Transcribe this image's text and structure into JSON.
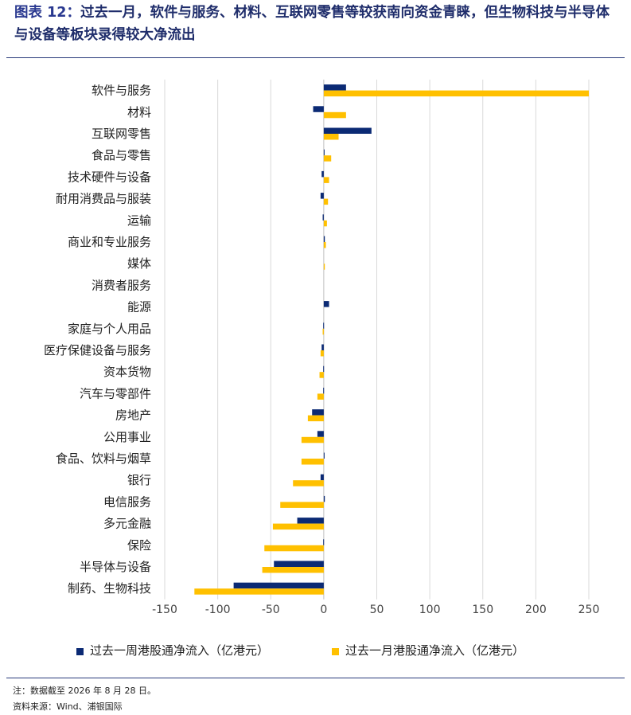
{
  "title": {
    "label": "图表 12：",
    "text": "过去一月，软件与服务、材料、互联网零售等较获南向资金青睐，但生物科技与半导体与设备等板块录得较大净流出"
  },
  "colors": {
    "week": "#0b2a74",
    "month": "#ffc000",
    "grid": "#d9d9d9",
    "rule": "#2a3a7a"
  },
  "chart_data": {
    "type": "bar",
    "orientation": "horizontal",
    "categories": [
      "软件与服务",
      "材料",
      "互联网零售",
      "食品与零售",
      "技术硬件与设备",
      "耐用消费品与服装",
      "运输",
      "商业和专业服务",
      "媒体",
      "消费者服务",
      "能源",
      "家庭与个人用品",
      "医疗保健设备与服务",
      "资本货物",
      "汽车与零部件",
      "房地产",
      "公用事业",
      "食品、饮料与烟草",
      "银行",
      "电信服务",
      "多元金融",
      "保险",
      "半导体与设备",
      "制药、生物科技"
    ],
    "series": [
      {
        "name": "过去一周港股通净流入（亿港元）",
        "values": [
          21,
          -10,
          45,
          0.5,
          -2,
          -3,
          -1,
          1,
          0,
          0,
          5,
          -0.5,
          -2,
          -0.5,
          -0.5,
          -11,
          -6,
          0.5,
          -3,
          1,
          -25,
          -0.5,
          -47,
          -85
        ]
      },
      {
        "name": "过去一月港股通净流入（亿港元）",
        "values": [
          250,
          21,
          14,
          7,
          5,
          4,
          3,
          2,
          1,
          0,
          0,
          -1,
          -3,
          -4,
          -6,
          -15,
          -21,
          -21,
          -29,
          -41,
          -48,
          -56,
          -58,
          -122
        ]
      }
    ],
    "xticks": [
      "-150",
      "-100",
      "-50",
      "0",
      "50",
      "100",
      "150",
      "200",
      "250"
    ],
    "xlim": [
      -150,
      250
    ],
    "grid": "vertical",
    "legend_position": "bottom"
  },
  "footnotes": {
    "note": "注：数据截至 2026 年 8 月 28 日。",
    "source": "资料来源：Wind、浦银国际"
  }
}
